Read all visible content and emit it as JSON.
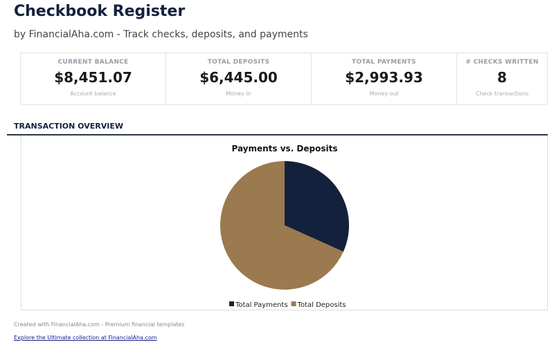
{
  "header": {
    "title": "Checkbook Register",
    "subtitle": "by FinancialAha.com - Track checks, deposits, and payments"
  },
  "cards": [
    {
      "label": "CURRENT BALANCE",
      "value": "$8,451.07",
      "sub": "Account balance"
    },
    {
      "label": "TOTAL DEPOSITS",
      "value": "$6,445.00",
      "sub": "Money in"
    },
    {
      "label": "TOTAL PAYMENTS",
      "value": "$2,993.93",
      "sub": "Money out"
    },
    {
      "label": "# CHECKS WRITTEN",
      "value": "8",
      "sub": "Check transactions"
    }
  ],
  "section": {
    "title": "TRANSACTION OVERVIEW"
  },
  "chart_data": {
    "type": "pie",
    "title": "Payments vs. Deposits",
    "legend": "bottom",
    "categories": [
      "Total Payments",
      "Total Deposits"
    ],
    "values": [
      2993.93,
      6445.0
    ],
    "colors": [
      "#14213d",
      "#9a7a4e"
    ]
  },
  "footer": {
    "text": "Created with FinancialAha.com - Premium financial templates",
    "link": "Explore the Ultimate collection at FinancialAha.com"
  }
}
